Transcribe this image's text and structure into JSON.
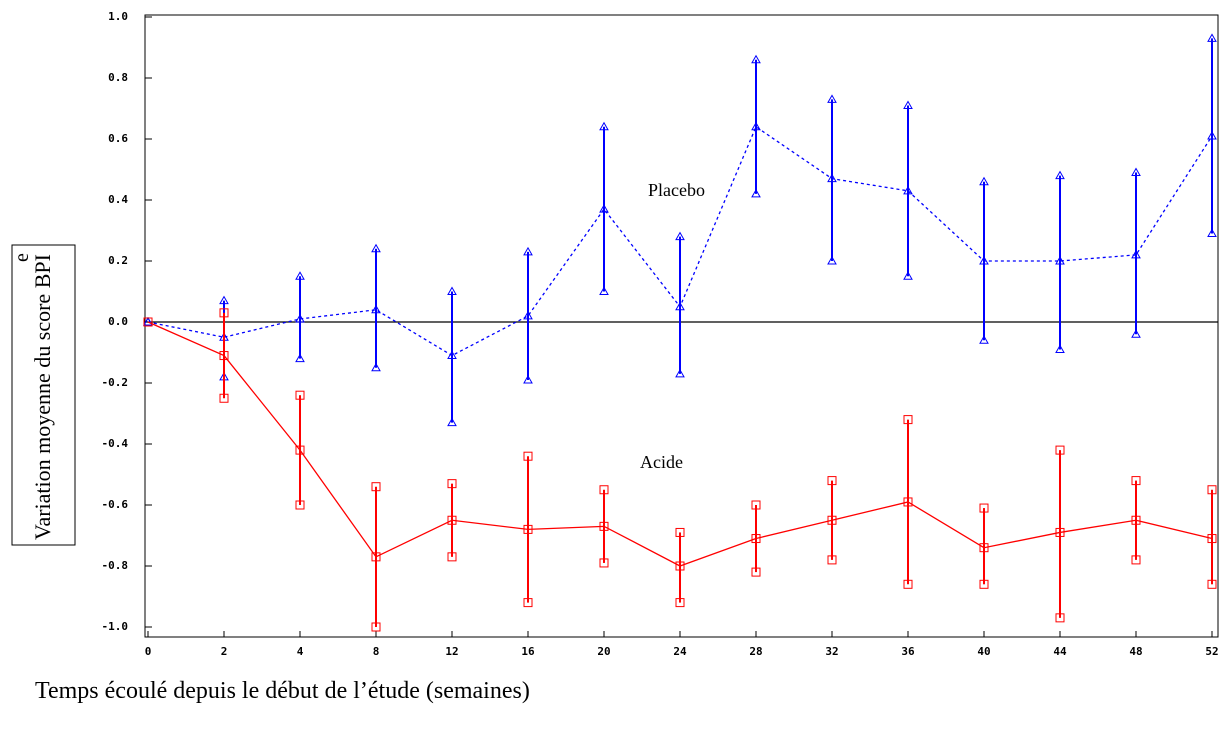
{
  "chart_data": {
    "type": "errorbar-line",
    "y_label": "Variation moyenne du score BPI",
    "y_label_superscript": "e",
    "x_label": "Temps écoulé depuis le début de l’étude (semaines)",
    "categories": [
      "0",
      "2",
      "4",
      "8",
      "12",
      "16",
      "20",
      "24",
      "28",
      "32",
      "36",
      "40",
      "44",
      "48",
      "52"
    ],
    "ylim": [
      -1,
      1
    ],
    "yticks": [
      {
        "value": -1,
        "label": "-1.0"
      },
      -0.8,
      -0.6,
      -0.4,
      -0.2,
      {
        "value": 0,
        "label": "0.0"
      },
      0.2,
      0.4,
      0.6,
      0.8,
      {
        "value": 1,
        "label": "1.0"
      }
    ],
    "reference_line": 0,
    "series": [
      {
        "name": "Placebo",
        "color": "#0000ff",
        "dashed": true,
        "marker": "triangle",
        "values": [
          0,
          -0.05,
          0.01,
          0.04,
          -0.11,
          0.02,
          0.37,
          0.05,
          0.64,
          0.47,
          0.43,
          0.2,
          0.2,
          0.22,
          0.61
        ],
        "lower": [
          0,
          -0.18,
          -0.12,
          -0.15,
          -0.33,
          -0.19,
          0.1,
          -0.17,
          0.42,
          0.2,
          0.15,
          -0.06,
          -0.09,
          -0.04,
          0.29
        ],
        "upper": [
          0,
          0.07,
          0.15,
          0.24,
          0.1,
          0.23,
          0.64,
          0.28,
          0.86,
          0.73,
          0.71,
          0.46,
          0.48,
          0.49,
          0.93
        ]
      },
      {
        "name": "Acide",
        "color": "#ff0000",
        "dashed": false,
        "marker": "square",
        "values": [
          0,
          -0.11,
          -0.42,
          -0.77,
          -0.65,
          -0.68,
          -0.67,
          -0.8,
          -0.71,
          -0.65,
          -0.59,
          -0.74,
          -0.69,
          -0.65,
          -0.71
        ],
        "lower": [
          0,
          -0.25,
          -0.6,
          -1.0,
          -0.77,
          -0.92,
          -0.79,
          -0.92,
          -0.82,
          -0.78,
          -0.86,
          -0.86,
          -0.97,
          -0.78,
          -0.86
        ],
        "upper": [
          0,
          0.03,
          -0.24,
          -0.54,
          -0.53,
          -0.44,
          -0.55,
          -0.69,
          -0.6,
          -0.52,
          -0.32,
          -0.61,
          -0.42,
          -0.52,
          -0.55
        ]
      }
    ]
  }
}
